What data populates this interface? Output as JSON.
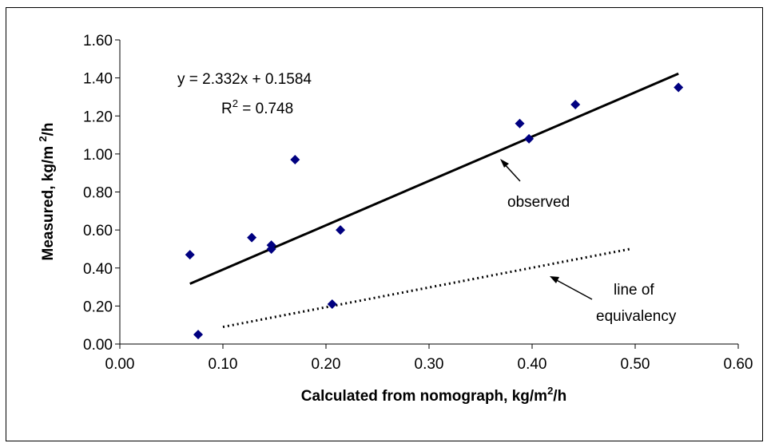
{
  "chart_data": {
    "type": "scatter",
    "xlabel": "Calculated from nomograph, kg/m",
    "xlabel_sup": "2",
    "xlabel_tail": "/h",
    "ylabel": "Measured, kg/m ",
    "ylabel_sup": "2",
    "ylabel_tail": "/h",
    "xlim": [
      0.0,
      0.6
    ],
    "ylim": [
      0.0,
      1.6
    ],
    "x_ticks": [
      "0.00",
      "0.10",
      "0.20",
      "0.30",
      "0.40",
      "0.50",
      "0.60"
    ],
    "y_ticks": [
      "0.00",
      "0.20",
      "0.40",
      "0.60",
      "0.80",
      "1.00",
      "1.20",
      "1.40",
      "1.60"
    ],
    "x_tick_values": [
      0.0,
      0.1,
      0.2,
      0.3,
      0.4,
      0.5,
      0.6
    ],
    "y_tick_values": [
      0.0,
      0.2,
      0.4,
      0.6,
      0.8,
      1.0,
      1.2,
      1.4,
      1.6
    ],
    "grid": false,
    "marker_color": "#000080",
    "points": [
      {
        "x": 0.068,
        "y": 0.47
      },
      {
        "x": 0.076,
        "y": 0.05
      },
      {
        "x": 0.128,
        "y": 0.56
      },
      {
        "x": 0.147,
        "y": 0.52
      },
      {
        "x": 0.147,
        "y": 0.5
      },
      {
        "x": 0.17,
        "y": 0.97
      },
      {
        "x": 0.206,
        "y": 0.21
      },
      {
        "x": 0.214,
        "y": 0.6
      },
      {
        "x": 0.388,
        "y": 1.16
      },
      {
        "x": 0.397,
        "y": 1.08
      },
      {
        "x": 0.442,
        "y": 1.26
      },
      {
        "x": 0.542,
        "y": 1.35
      }
    ],
    "trend_line": {
      "slope": 2.332,
      "intercept": 0.1584,
      "x_range": [
        0.068,
        0.542
      ]
    },
    "equivalency_line": {
      "x": [
        0.1,
        0.495
      ],
      "y": [
        0.09,
        0.5
      ]
    },
    "equation_text": "y = 2.332x + 0.1584",
    "r2_prefix": "R",
    "r2_sup": "2",
    "r2_value": " = 0.748",
    "annotations": {
      "observed": "observed",
      "equivalency_line1": "line of",
      "equivalency_line2": "equivalency"
    }
  }
}
